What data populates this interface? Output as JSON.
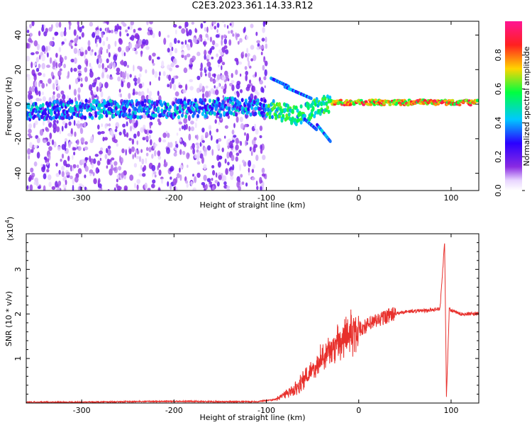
{
  "title": "C2E3.2023.361.14.33.R12",
  "chart_data": [
    {
      "type": "heatmap",
      "xlabel": "Height of straight line (km)",
      "ylabel": "Frequency (Hz)",
      "xlim": [
        -360,
        130
      ],
      "ylim": [
        -50,
        48
      ],
      "xticks": [
        -300,
        -200,
        -100,
        0,
        100
      ],
      "yticks": [
        -40,
        -20,
        0,
        20,
        40
      ],
      "colorbar": {
        "label": "Normalized spectral amplitude",
        "ticks": [
          "0.0",
          "0.2",
          "0.4",
          "0.6",
          "0.8"
        ],
        "range": [
          0,
          1
        ],
        "colors": [
          "#ffffff",
          "#e8d5ff",
          "#8a2be2",
          "#2a00ff",
          "#00c8ff",
          "#00ff40",
          "#ffd400",
          "#ff2020",
          "#ff1493"
        ]
      },
      "ridge": [
        {
          "x": -360,
          "freq": -4
        },
        {
          "x": -300,
          "freq": -3
        },
        {
          "x": -200,
          "freq": -3
        },
        {
          "x": -150,
          "freq": -2
        },
        {
          "x": -120,
          "freq": -1
        },
        {
          "x": -100,
          "freq": -2
        },
        {
          "x": -80,
          "freq": -5
        },
        {
          "x": -65,
          "freq": -7
        },
        {
          "x": -50,
          "freq": -3
        },
        {
          "x": -30,
          "freq": 1
        },
        {
          "x": 0,
          "freq": 1
        },
        {
          "x": 50,
          "freq": 1
        },
        {
          "x": 100,
          "freq": 1
        },
        {
          "x": 130,
          "freq": 1
        }
      ]
    },
    {
      "type": "line",
      "xlabel": "Height of straight line (km)",
      "ylabel": "SNR (10 * v/v)",
      "scale_label": "(x10",
      "scale_exp": "4",
      "scale_close": ")",
      "xlim": [
        -360,
        130
      ],
      "ylim": [
        0,
        3.8
      ],
      "xticks": [
        -300,
        -200,
        -100,
        0,
        100
      ],
      "yticks": [
        1,
        2,
        3
      ],
      "color": "#e8302c",
      "series": [
        {
          "values": [
            {
              "x": -360,
              "y": 0.02
            },
            {
              "x": -300,
              "y": 0.02
            },
            {
              "x": -250,
              "y": 0.03
            },
            {
              "x": -200,
              "y": 0.04
            },
            {
              "x": -150,
              "y": 0.03
            },
            {
              "x": -110,
              "y": 0.03
            },
            {
              "x": -90,
              "y": 0.08
            },
            {
              "x": -70,
              "y": 0.3
            },
            {
              "x": -55,
              "y": 0.6
            },
            {
              "x": -45,
              "y": 0.9
            },
            {
              "x": -35,
              "y": 1.1
            },
            {
              "x": -25,
              "y": 1.3
            },
            {
              "x": -15,
              "y": 1.5
            },
            {
              "x": 0,
              "y": 1.65
            },
            {
              "x": 15,
              "y": 1.8
            },
            {
              "x": 30,
              "y": 1.95
            },
            {
              "x": 50,
              "y": 2.05
            },
            {
              "x": 75,
              "y": 2.08
            },
            {
              "x": 88,
              "y": 2.12
            },
            {
              "x": 93,
              "y": 3.6
            },
            {
              "x": 95,
              "y": 0.15
            },
            {
              "x": 98,
              "y": 2.1
            },
            {
              "x": 110,
              "y": 2.0
            },
            {
              "x": 130,
              "y": 2.0
            }
          ]
        }
      ]
    }
  ]
}
